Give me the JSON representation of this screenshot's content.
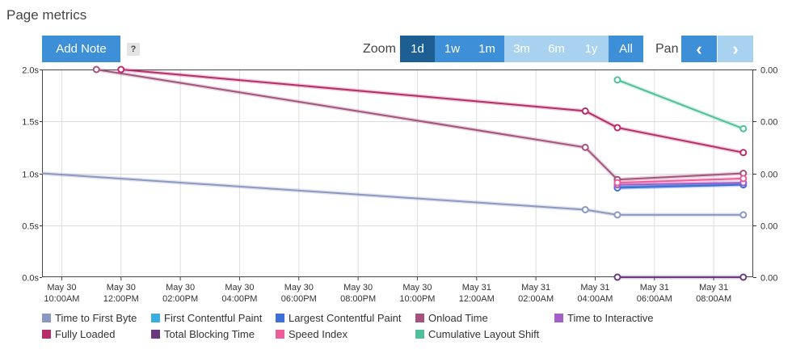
{
  "header": {
    "title": "Page metrics"
  },
  "toolbar": {
    "add_note_label": "Add Note",
    "help_label": "?",
    "zoom_label": "Zoom",
    "zoom_options": [
      {
        "label": "1d",
        "state": "selected"
      },
      {
        "label": "1w",
        "state": "enabled"
      },
      {
        "label": "1m",
        "state": "enabled"
      },
      {
        "label": "3m",
        "state": "disabled"
      },
      {
        "label": "6m",
        "state": "disabled"
      },
      {
        "label": "1y",
        "state": "disabled"
      },
      {
        "label": "All",
        "state": "enabled"
      }
    ],
    "pan_label": "Pan",
    "pan_prev_label": "‹",
    "pan_next_label": "›"
  },
  "chart_data": {
    "type": "line",
    "title": "",
    "xlabel": "",
    "ylabel": "",
    "x_range": [
      "May 30 09:20",
      "May 31 09:20"
    ],
    "ylim": [
      0,
      2.0
    ],
    "y_ticks": [
      "0.0s",
      "0.5s",
      "1.0s",
      "1.5s",
      "2.0s"
    ],
    "y2_ticks": [
      "0.00",
      "0.00",
      "0.00",
      "0.00",
      "0.00"
    ],
    "x_ticks": [
      {
        "t": "May 30 10:00",
        "lines": [
          "May 30",
          "10:00AM"
        ]
      },
      {
        "t": "May 30 12:00",
        "lines": [
          "May 30",
          "12:00PM"
        ]
      },
      {
        "t": "May 30 14:00",
        "lines": [
          "May 30",
          "02:00PM"
        ]
      },
      {
        "t": "May 30 16:00",
        "lines": [
          "May 30",
          "04:00PM"
        ]
      },
      {
        "t": "May 30 18:00",
        "lines": [
          "May 30",
          "06:00PM"
        ]
      },
      {
        "t": "May 30 20:00",
        "lines": [
          "May 30",
          "08:00PM"
        ]
      },
      {
        "t": "May 30 22:00",
        "lines": [
          "May 30",
          "10:00PM"
        ]
      },
      {
        "t": "May 31 00:00",
        "lines": [
          "May 31",
          "12:00AM"
        ]
      },
      {
        "t": "May 31 02:00",
        "lines": [
          "May 31",
          "02:00AM"
        ]
      },
      {
        "t": "May 31 04:00",
        "lines": [
          "May 31",
          "04:00AM"
        ]
      },
      {
        "t": "May 31 06:00",
        "lines": [
          "May 31",
          "06:00AM"
        ]
      },
      {
        "t": "May 31 08:00",
        "lines": [
          "May 31",
          "08:00AM"
        ]
      }
    ],
    "grid": true,
    "legend_position": "bottom",
    "series": [
      {
        "name": "Time to First Byte",
        "color": "#8b98c0",
        "points": [
          [
            "May 30 09:20",
            1.0
          ],
          [
            "May 31 03:40",
            0.65
          ],
          [
            "May 31 04:45",
            0.6
          ],
          [
            "May 31 09:00",
            0.6
          ]
        ]
      },
      {
        "name": "First Contentful Paint",
        "color": "#3aaee0",
        "points": [
          [
            "May 31 04:45",
            0.87
          ],
          [
            "May 31 09:00",
            0.9
          ]
        ]
      },
      {
        "name": "Largest Contentful Paint",
        "color": "#3f6fd8",
        "points": [
          [
            "May 31 04:45",
            0.86
          ],
          [
            "May 31 09:00",
            0.89
          ]
        ]
      },
      {
        "name": "Onload Time",
        "color": "#a2547f",
        "points": [
          [
            "May 30 11:10",
            2.0
          ],
          [
            "May 31 03:40",
            1.25
          ],
          [
            "May 31 04:45",
            0.94
          ],
          [
            "May 31 09:00",
            1.0
          ]
        ]
      },
      {
        "name": "Time to Interactive",
        "color": "#a45fc8",
        "points": [
          [
            "May 31 04:45",
            0.89
          ],
          [
            "May 31 09:00",
            0.91
          ]
        ]
      },
      {
        "name": "Fully Loaded",
        "color": "#b52e6b",
        "points": [
          [
            "May 30 12:00",
            2.0
          ],
          [
            "May 31 03:40",
            1.6
          ],
          [
            "May 31 04:45",
            1.44
          ],
          [
            "May 31 09:00",
            1.2
          ]
        ]
      },
      {
        "name": "Total Blocking Time",
        "color": "#6b3a7c",
        "points": [
          [
            "May 31 04:45",
            0.0
          ],
          [
            "May 31 09:00",
            0.0
          ]
        ]
      },
      {
        "name": "Speed Index",
        "color": "#ee5c9a",
        "points": [
          [
            "May 31 04:45",
            0.91
          ],
          [
            "May 31 09:00",
            0.95
          ]
        ]
      },
      {
        "name": "Cumulative Layout Shift",
        "color": "#4fbf9d",
        "points": [
          [
            "May 31 04:45",
            1.9
          ],
          [
            "May 31 09:00",
            1.43
          ]
        ]
      }
    ]
  }
}
